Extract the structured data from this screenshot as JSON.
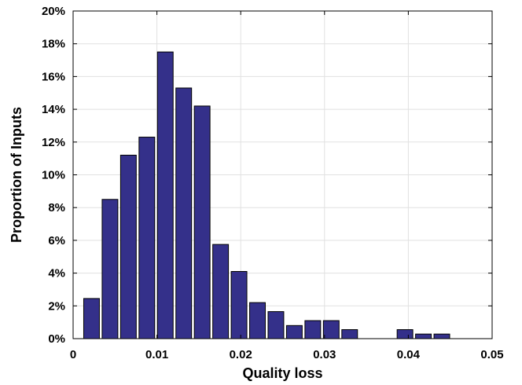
{
  "chart_data": {
    "type": "bar",
    "title": "",
    "xlabel": "Quality loss",
    "ylabel": "Proportion of Inputs",
    "xlim": [
      0,
      0.05
    ],
    "ylim": [
      0,
      20
    ],
    "x_ticks": [
      0,
      0.01,
      0.02,
      0.03,
      0.04,
      0.05
    ],
    "x_tick_labels": [
      "0",
      "0.01",
      "0.02",
      "0.03",
      "0.04",
      "0.05"
    ],
    "y_ticks": [
      0,
      2,
      4,
      6,
      8,
      10,
      12,
      14,
      16,
      18,
      20
    ],
    "y_tick_labels": [
      "0%",
      "2%",
      "4%",
      "6%",
      "8%",
      "10%",
      "12%",
      "14%",
      "16%",
      "18%",
      "20%"
    ],
    "bin_width": 0.0022,
    "bar_color": "#34308a",
    "grid": true,
    "x": [
      0.0022,
      0.0044,
      0.0066,
      0.0088,
      0.011,
      0.0132,
      0.0154,
      0.0176,
      0.0198,
      0.022,
      0.0242,
      0.0264,
      0.0286,
      0.0308,
      0.033,
      0.0352,
      0.0374,
      0.0396,
      0.0418,
      0.044,
      0.0462,
      0.0484
    ],
    "values": [
      2.45,
      8.5,
      11.2,
      12.3,
      17.5,
      15.3,
      14.2,
      5.75,
      4.1,
      2.2,
      1.65,
      0.8,
      1.1,
      1.1,
      0.55,
      0,
      0,
      0.55,
      0.28,
      0.28,
      0,
      0
    ]
  }
}
